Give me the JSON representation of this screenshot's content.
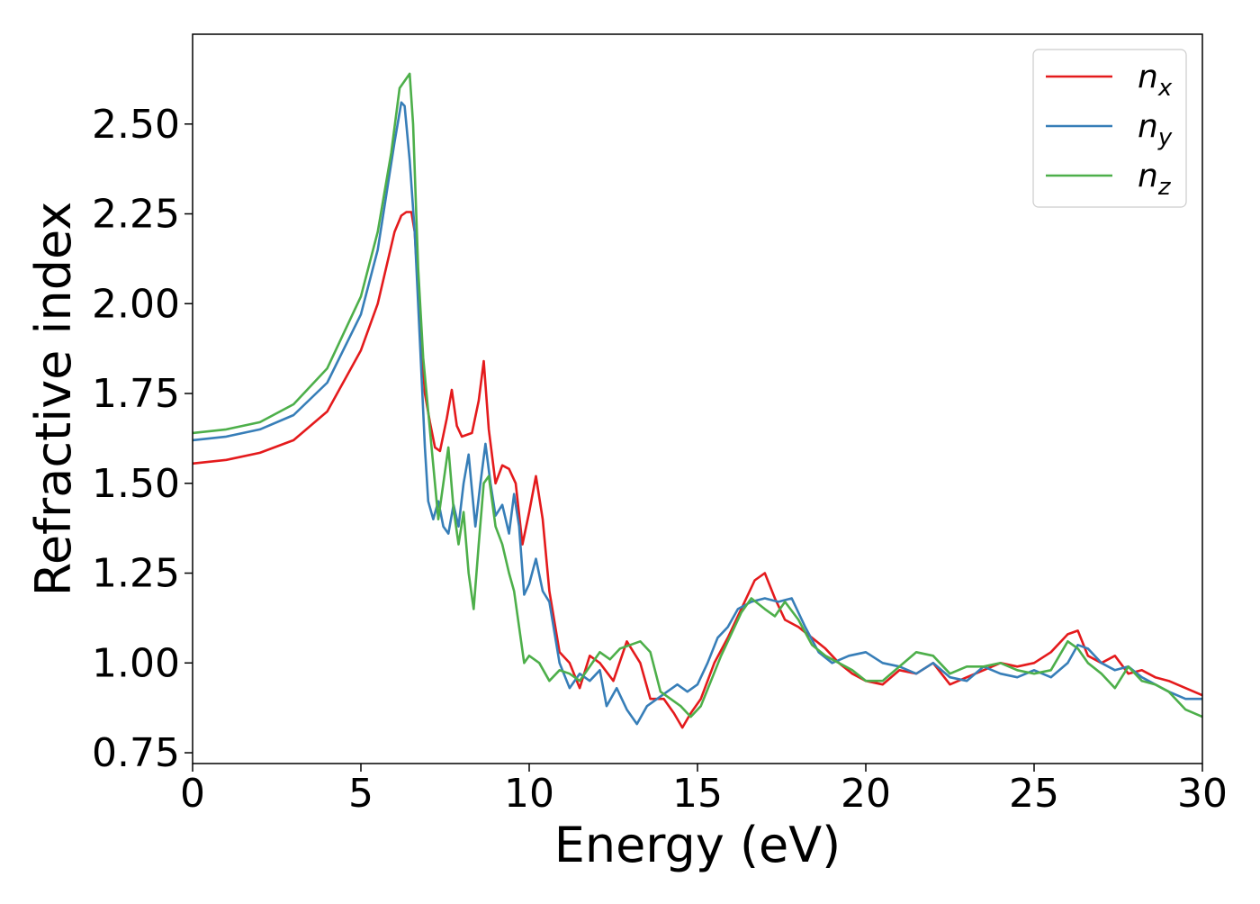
{
  "chart_data": {
    "type": "line",
    "title": "",
    "xlabel": "Energy (eV)",
    "ylabel": "Refractive index",
    "xlim": [
      0,
      30
    ],
    "ylim": [
      0.72,
      2.75
    ],
    "xticks": [
      0,
      5,
      10,
      15,
      20,
      25,
      30
    ],
    "xtick_labels": [
      "0",
      "5",
      "10",
      "15",
      "20",
      "25",
      "30"
    ],
    "yticks": [
      0.75,
      1.0,
      1.25,
      1.5,
      1.75,
      2.0,
      2.25,
      2.5
    ],
    "ytick_labels": [
      "0.75",
      "1.00",
      "1.25",
      "1.50",
      "1.75",
      "2.00",
      "2.25",
      "2.50"
    ],
    "grid": false,
    "legend_position": "top-right",
    "series": [
      {
        "name": "n_x",
        "label_base": "n",
        "label_sub": "x",
        "color": "#e41a1c",
        "x": [
          0,
          1,
          2,
          3,
          4,
          5,
          5.5,
          6.0,
          6.2,
          6.35,
          6.5,
          6.6,
          6.75,
          6.9,
          7.05,
          7.2,
          7.35,
          7.55,
          7.7,
          7.85,
          8.0,
          8.3,
          8.5,
          8.65,
          8.8,
          9.0,
          9.2,
          9.4,
          9.6,
          9.8,
          10.0,
          10.2,
          10.4,
          10.6,
          10.9,
          11.2,
          11.5,
          11.8,
          12.1,
          12.5,
          12.9,
          13.3,
          13.6,
          14.0,
          14.3,
          14.55,
          14.8,
          15.1,
          15.5,
          15.9,
          16.3,
          16.7,
          17.0,
          17.3,
          17.6,
          18.0,
          18.4,
          18.8,
          19.2,
          19.6,
          20.0,
          20.5,
          21.0,
          21.5,
          22.0,
          22.5,
          23.0,
          23.5,
          24.0,
          24.5,
          25.0,
          25.5,
          26.0,
          26.3,
          26.6,
          27.0,
          27.4,
          27.8,
          28.2,
          28.6,
          29.0,
          29.5,
          30.0
        ],
        "y": [
          1.555,
          1.565,
          1.585,
          1.62,
          1.7,
          1.87,
          2.0,
          2.2,
          2.245,
          2.255,
          2.255,
          2.2,
          1.95,
          1.75,
          1.67,
          1.6,
          1.59,
          1.68,
          1.76,
          1.66,
          1.63,
          1.64,
          1.73,
          1.84,
          1.65,
          1.5,
          1.55,
          1.54,
          1.5,
          1.33,
          1.42,
          1.52,
          1.4,
          1.2,
          1.03,
          1.0,
          0.93,
          1.02,
          1.0,
          0.95,
          1.06,
          1.0,
          0.9,
          0.9,
          0.86,
          0.82,
          0.86,
          0.9,
          1.0,
          1.07,
          1.15,
          1.23,
          1.25,
          1.18,
          1.12,
          1.1,
          1.07,
          1.04,
          1.0,
          0.97,
          0.95,
          0.94,
          0.98,
          0.97,
          1.0,
          0.94,
          0.96,
          0.98,
          1.0,
          0.99,
          1.0,
          1.03,
          1.08,
          1.09,
          1.02,
          1.0,
          1.02,
          0.97,
          0.98,
          0.96,
          0.95,
          0.93,
          0.91
        ]
      },
      {
        "name": "n_y",
        "label_base": "n",
        "label_sub": "y",
        "color": "#377eb8",
        "x": [
          0,
          1,
          2,
          3,
          4,
          5,
          5.5,
          6.0,
          6.2,
          6.3,
          6.45,
          6.6,
          6.75,
          6.9,
          7.0,
          7.15,
          7.3,
          7.45,
          7.6,
          7.75,
          7.9,
          8.05,
          8.2,
          8.4,
          8.55,
          8.7,
          8.85,
          9.0,
          9.2,
          9.4,
          9.55,
          9.7,
          9.85,
          10.0,
          10.2,
          10.4,
          10.6,
          10.9,
          11.2,
          11.5,
          11.8,
          12.1,
          12.3,
          12.6,
          12.9,
          13.2,
          13.5,
          13.8,
          14.1,
          14.4,
          14.7,
          15.0,
          15.3,
          15.6,
          15.9,
          16.2,
          16.6,
          17.0,
          17.4,
          17.8,
          18.2,
          18.6,
          19.0,
          19.5,
          20.0,
          20.5,
          21.0,
          21.5,
          22.0,
          22.5,
          23.0,
          23.5,
          24.0,
          24.5,
          25.0,
          25.5,
          26.0,
          26.3,
          26.6,
          27.0,
          27.4,
          27.8,
          28.2,
          28.6,
          29.0,
          29.5,
          30.0
        ],
        "y": [
          1.62,
          1.63,
          1.65,
          1.69,
          1.78,
          1.97,
          2.15,
          2.45,
          2.56,
          2.55,
          2.4,
          2.2,
          1.9,
          1.6,
          1.45,
          1.4,
          1.45,
          1.38,
          1.36,
          1.44,
          1.38,
          1.5,
          1.58,
          1.38,
          1.5,
          1.61,
          1.5,
          1.41,
          1.44,
          1.36,
          1.47,
          1.38,
          1.19,
          1.22,
          1.29,
          1.2,
          1.17,
          1.0,
          0.93,
          0.97,
          0.95,
          0.98,
          0.88,
          0.93,
          0.87,
          0.83,
          0.88,
          0.9,
          0.92,
          0.94,
          0.92,
          0.94,
          1.0,
          1.07,
          1.1,
          1.15,
          1.17,
          1.18,
          1.17,
          1.18,
          1.1,
          1.03,
          1.0,
          1.02,
          1.03,
          1.0,
          0.99,
          0.97,
          1.0,
          0.96,
          0.95,
          0.99,
          0.97,
          0.96,
          0.98,
          0.96,
          1.0,
          1.05,
          1.04,
          1.0,
          0.98,
          0.99,
          0.96,
          0.94,
          0.92,
          0.9,
          0.9
        ]
      },
      {
        "name": "n_z",
        "label_base": "n",
        "label_sub": "z",
        "color": "#4daf4a",
        "x": [
          0,
          1,
          2,
          3,
          4,
          5,
          5.5,
          5.9,
          6.15,
          6.3,
          6.45,
          6.55,
          6.7,
          6.85,
          7.0,
          7.15,
          7.3,
          7.45,
          7.6,
          7.75,
          7.9,
          8.05,
          8.2,
          8.35,
          8.5,
          8.65,
          8.8,
          9.0,
          9.2,
          9.4,
          9.55,
          9.7,
          9.85,
          10.0,
          10.3,
          10.6,
          10.9,
          11.2,
          11.5,
          11.8,
          12.1,
          12.4,
          12.7,
          13.0,
          13.3,
          13.6,
          13.9,
          14.2,
          14.5,
          14.8,
          15.1,
          15.4,
          15.7,
          16.0,
          16.3,
          16.6,
          17.0,
          17.3,
          17.6,
          18.0,
          18.4,
          18.8,
          19.2,
          19.6,
          20.0,
          20.5,
          21.0,
          21.5,
          22.0,
          22.5,
          23.0,
          23.5,
          24.0,
          24.5,
          25.0,
          25.5,
          26.0,
          26.3,
          26.6,
          27.0,
          27.4,
          27.8,
          28.2,
          28.6,
          29.0,
          29.5,
          30.0
        ],
        "y": [
          1.64,
          1.65,
          1.67,
          1.72,
          1.82,
          2.02,
          2.2,
          2.42,
          2.6,
          2.62,
          2.64,
          2.5,
          2.1,
          1.85,
          1.7,
          1.55,
          1.4,
          1.5,
          1.6,
          1.43,
          1.33,
          1.42,
          1.25,
          1.15,
          1.33,
          1.5,
          1.52,
          1.38,
          1.33,
          1.25,
          1.2,
          1.1,
          1.0,
          1.02,
          1.0,
          0.95,
          0.98,
          0.97,
          0.95,
          0.99,
          1.03,
          1.01,
          1.04,
          1.05,
          1.06,
          1.03,
          0.92,
          0.9,
          0.88,
          0.85,
          0.88,
          0.95,
          1.02,
          1.08,
          1.14,
          1.18,
          1.15,
          1.13,
          1.17,
          1.12,
          1.05,
          1.02,
          1.0,
          0.98,
          0.95,
          0.95,
          0.99,
          1.03,
          1.02,
          0.97,
          0.99,
          0.99,
          1.0,
          0.98,
          0.97,
          0.98,
          1.06,
          1.04,
          1.0,
          0.97,
          0.93,
          0.99,
          0.95,
          0.94,
          0.92,
          0.87,
          0.85
        ]
      }
    ]
  }
}
